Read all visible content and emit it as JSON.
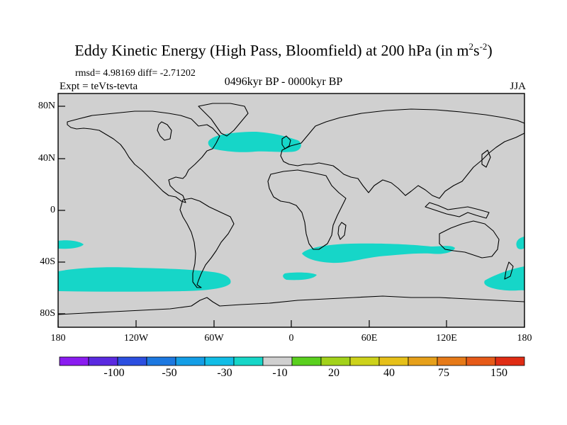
{
  "title": {
    "main": "Eddy Kinetic Energy (High Pass, Bloomfield) at 200 hPa (in m",
    "sup1": "2",
    "mid": "s",
    "sup2": "-2",
    "end": ")"
  },
  "stats": "rmsd= 4.98169 diff= -2.71202",
  "expt": "Expt = teVts-tevta",
  "period": "0496kyr BP - 0000kyr BP",
  "season": "JJA",
  "lat_labels": [
    "80N",
    "40N",
    "0",
    "40S",
    "80S"
  ],
  "lon_labels": [
    "180",
    "120W",
    "60W",
    "0",
    "60E",
    "120E",
    "180"
  ],
  "colorbar": {
    "colors": [
      "#8a1cf0",
      "#5a2ae0",
      "#2c4fe0",
      "#1c78e0",
      "#149ee6",
      "#12bde6",
      "#16d6c8",
      "#d0d0d0",
      "#5ad01e",
      "#a2d21a",
      "#cdd21a",
      "#e6c019",
      "#e6a01a",
      "#e67a18",
      "#e65a18",
      "#e02c14"
    ],
    "labels": [
      "-100",
      "-50",
      "-30",
      "-10",
      "20",
      "40",
      "75",
      "150"
    ]
  },
  "map_colors": {
    "background": "#d0d0d0",
    "negative": "#16d6c8",
    "coast": "#000000"
  }
}
